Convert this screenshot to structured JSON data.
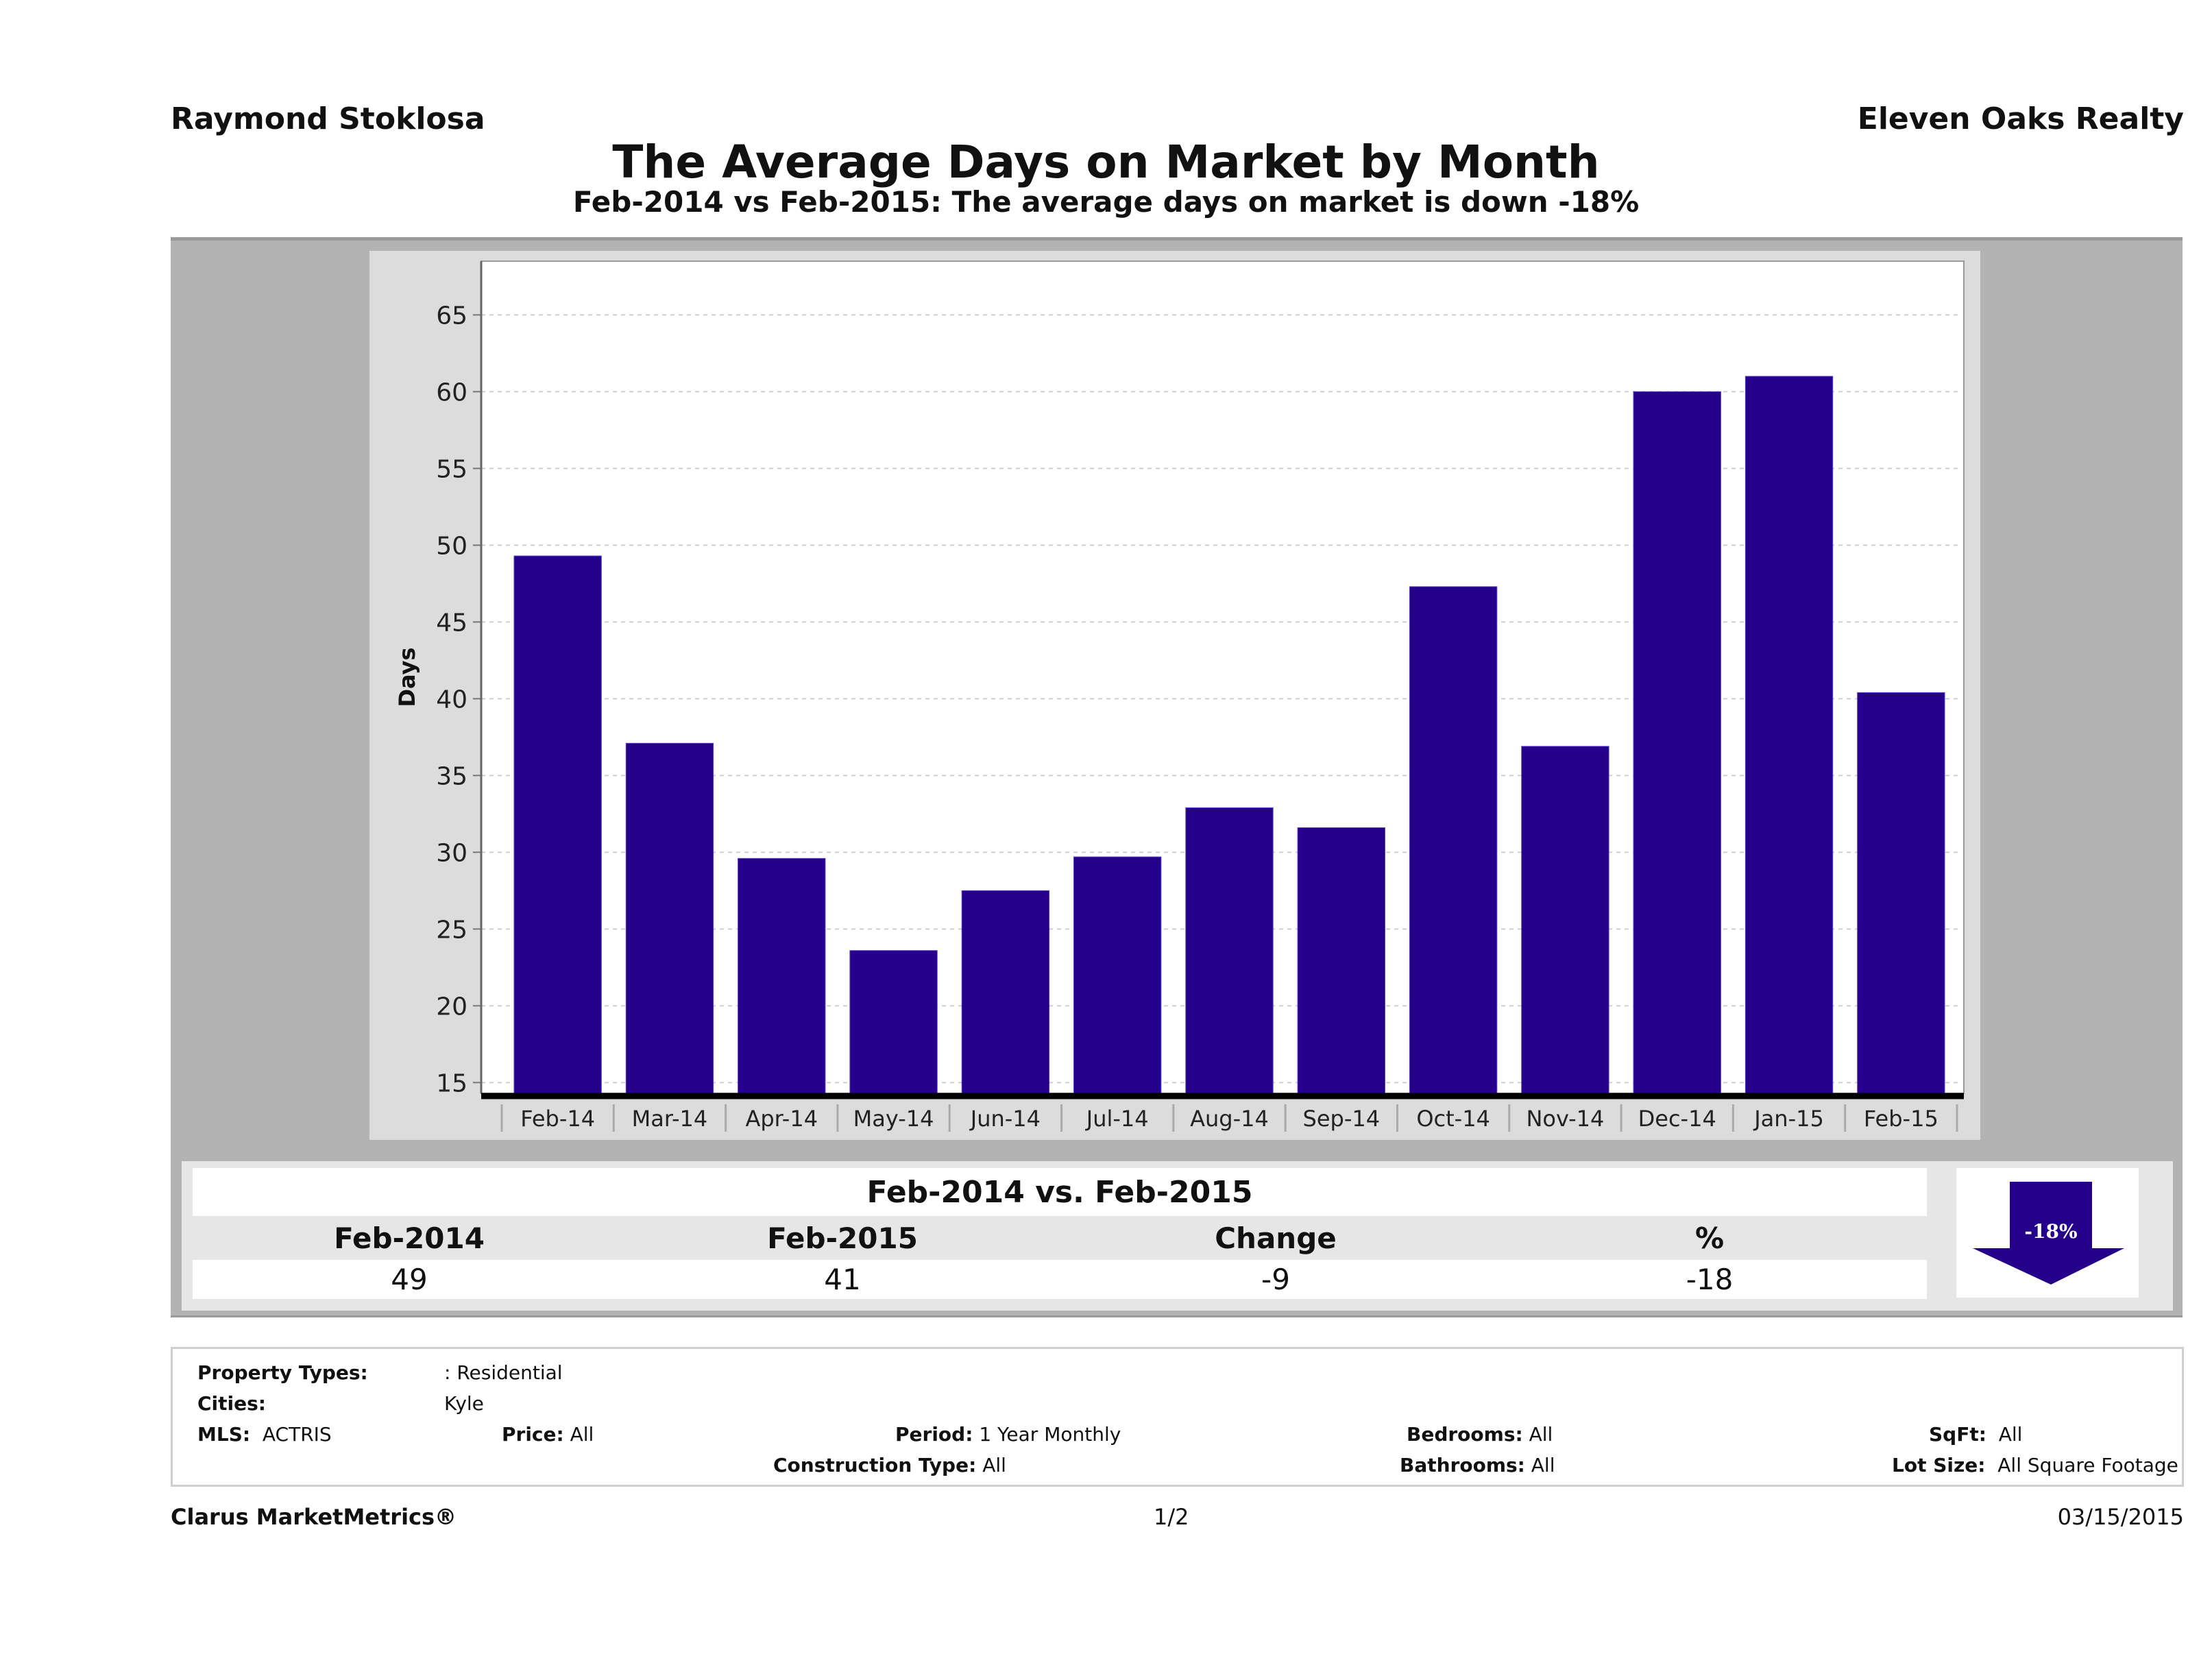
{
  "header": {
    "agent_name": "Raymond Stoklosa",
    "company_name": "Eleven Oaks Realty",
    "title": "The Average Days on Market by Month",
    "subtitle": "Feb-2014 vs Feb-2015: The average days on market is down -18%"
  },
  "chart_data": {
    "type": "bar",
    "title": "The Average Days on Market by Month",
    "xlabel": "",
    "ylabel": "Days",
    "categories": [
      "Feb-14",
      "Mar-14",
      "Apr-14",
      "May-14",
      "Jun-14",
      "Jul-14",
      "Aug-14",
      "Sep-14",
      "Oct-14",
      "Nov-14",
      "Dec-14",
      "Jan-15",
      "Feb-15"
    ],
    "values": [
      49.3,
      37.1,
      29.6,
      23.6,
      27.5,
      29.7,
      32.9,
      31.6,
      47.3,
      36.9,
      60.0,
      61.0,
      40.4
    ],
    "ylim": [
      14.3,
      68.5
    ],
    "yticks": [
      15,
      20,
      25,
      30,
      35,
      40,
      45,
      50,
      55,
      60,
      65
    ],
    "grid": true,
    "legend": "none",
    "bar_color": "#25008a"
  },
  "comparison": {
    "title": "Feb-2014 vs. Feb-2015",
    "headers": [
      "Feb-2014",
      "Feb-2015",
      "Change",
      "%"
    ],
    "values": [
      "49",
      "41",
      "-9",
      "-18"
    ],
    "badge_label": "-18%",
    "badge_direction": "down",
    "badge_color": "#25008a"
  },
  "criteria": {
    "property_types_label": "Property Types:",
    "property_types_value": ": Residential",
    "cities_label": "Cities:",
    "cities_value": "Kyle",
    "mls_label": "MLS:",
    "mls_value": "ACTRIS",
    "price_label": "Price:",
    "price_value": "All",
    "period_label": "Period:",
    "period_value": "1 Year Monthly",
    "construction_label": "Construction Type:",
    "construction_value": "All",
    "bedrooms_label": "Bedrooms:",
    "bedrooms_value": "All",
    "bathrooms_label": "Bathrooms:",
    "bathrooms_value": "All",
    "sqft_label": "SqFt:",
    "sqft_value": "All",
    "lotsize_label": "Lot Size:",
    "lotsize_value": "All Square Footage"
  },
  "footer": {
    "brand": "Clarus MarketMetrics®",
    "page": "1/2",
    "date": "03/15/2015"
  }
}
